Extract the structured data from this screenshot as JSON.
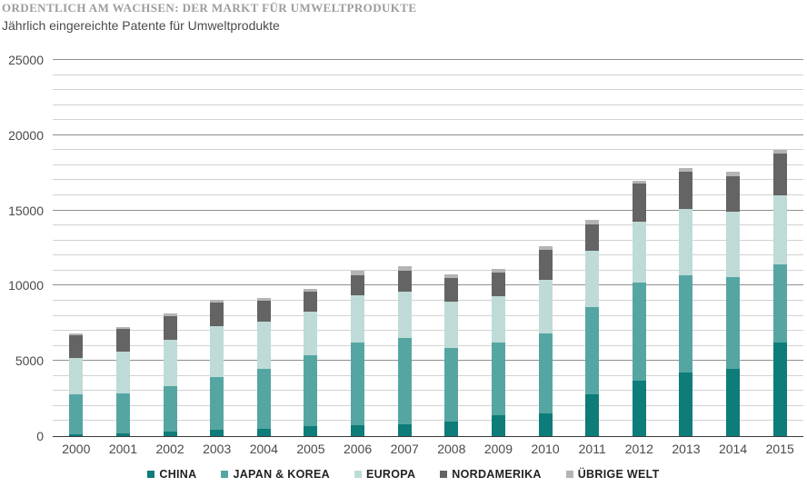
{
  "header": {
    "kicker": "ORDENTLICH AM WACHSEN: DER MARKT FÜR UMWELTPRODUKTE",
    "subtitle": "Jährlich eingereichte Patente für Umweltprodukte"
  },
  "chart_data": {
    "type": "bar",
    "stacked": true,
    "title": "Jährlich eingereichte Patente für Umweltprodukte",
    "categories": [
      "2000",
      "2001",
      "2002",
      "2003",
      "2004",
      "2005",
      "2006",
      "2007",
      "2008",
      "2009",
      "2010",
      "2011",
      "2012",
      "2013",
      "2014",
      "2015"
    ],
    "series": [
      {
        "name": "CHINA",
        "color": "#0e7c79",
        "values": [
          100,
          200,
          300,
          400,
          500,
          650,
          750,
          800,
          950,
          1400,
          1500,
          2800,
          3700,
          4200,
          4450,
          6250
        ]
      },
      {
        "name": "JAPAN & KOREA",
        "color": "#55a6a3",
        "values": [
          2700,
          2650,
          3050,
          3500,
          3950,
          4700,
          5450,
          5700,
          4900,
          4800,
          5300,
          5800,
          6500,
          6500,
          6100,
          5150
        ]
      },
      {
        "name": "EUROPA",
        "color": "#bedbd7",
        "values": [
          2400,
          2750,
          3050,
          3400,
          3150,
          2950,
          3150,
          3100,
          3100,
          3100,
          3600,
          3700,
          4050,
          4400,
          4350,
          4600
        ]
      },
      {
        "name": "NORDAMERIKA",
        "color": "#646464",
        "values": [
          1500,
          1500,
          1550,
          1600,
          1400,
          1300,
          1350,
          1400,
          1550,
          1550,
          2000,
          1800,
          2550,
          2450,
          2400,
          2800
        ]
      },
      {
        "name": "ÜBRIGE WELT",
        "color": "#b4b4b4",
        "values": [
          150,
          150,
          200,
          150,
          200,
          200,
          300,
          300,
          250,
          250,
          250,
          300,
          200,
          250,
          250,
          250
        ]
      }
    ],
    "ylim": [
      0,
      25000
    ],
    "yticks": [
      0,
      5000,
      10000,
      15000,
      20000,
      25000
    ],
    "ytick_minor_interval": 1000,
    "grid": true,
    "legend_position": "bottom",
    "colors": {
      "axis": "#3a3a3a",
      "grid_major": "#8f8f8f",
      "grid_minor": "#d2d2d2",
      "tick_text": "#4a4a4a"
    }
  }
}
